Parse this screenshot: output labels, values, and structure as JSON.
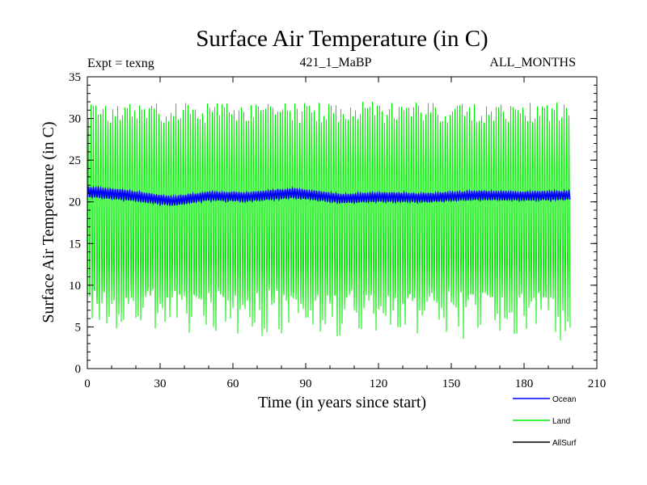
{
  "chart_data": {
    "type": "line",
    "title": "Surface Air Temperature (in C)",
    "subtitle_left": "Expt = texng",
    "subtitle_center": "421_1_MaBP",
    "subtitle_right": "ALL_MONTHS",
    "xlabel": "Time (in years since start)",
    "ylabel": "Surface Air Temperature (in C)",
    "xlim": [
      0,
      210
    ],
    "ylim": [
      0,
      35
    ],
    "xticks": [
      "0",
      "30",
      "60",
      "90",
      "120",
      "150",
      "180",
      "210"
    ],
    "yticks": [
      "0",
      "5",
      "10",
      "15",
      "20",
      "25",
      "30",
      "35"
    ],
    "x_end": 199,
    "series": [
      {
        "name": "Land",
        "color": "#00ee00",
        "mean": 17.8,
        "seasonal_max_range": [
          29.5,
          32.0
        ],
        "seasonal_min_range": [
          3.0,
          9.5
        ]
      },
      {
        "name": "Ocean",
        "color": "#0000ff",
        "values_annual_band": [
          {
            "x": 0,
            "low": 20.6,
            "high": 21.8
          },
          {
            "x": 15,
            "low": 20.3,
            "high": 21.4
          },
          {
            "x": 35,
            "low": 19.6,
            "high": 20.6
          },
          {
            "x": 50,
            "low": 20.2,
            "high": 21.2
          },
          {
            "x": 65,
            "low": 20.1,
            "high": 21.1
          },
          {
            "x": 85,
            "low": 20.5,
            "high": 21.6
          },
          {
            "x": 105,
            "low": 19.9,
            "high": 20.9
          },
          {
            "x": 120,
            "low": 20.1,
            "high": 21.1
          },
          {
            "x": 140,
            "low": 20.0,
            "high": 21.0
          },
          {
            "x": 160,
            "low": 20.3,
            "high": 21.3
          },
          {
            "x": 180,
            "low": 20.2,
            "high": 21.2
          },
          {
            "x": 199,
            "low": 20.3,
            "high": 21.3
          }
        ]
      },
      {
        "name": "AllSurf",
        "color": "#000000"
      }
    ],
    "legend": [
      "Ocean",
      "Land",
      "AllSurf"
    ],
    "legend_position": "bottom-right"
  }
}
